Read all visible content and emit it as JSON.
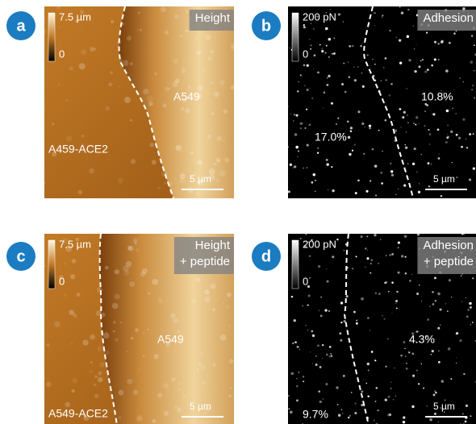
{
  "panels": [
    {
      "letter": "a",
      "scale_max": "7.5 µm",
      "scale_min": "0",
      "mode": [
        "Height"
      ],
      "labels": [
        "A459-ACE2",
        "A549"
      ],
      "scale_bar": "5 µm"
    },
    {
      "letter": "b",
      "scale_max": "200 pN",
      "scale_min": "0",
      "mode": [
        "Adhesion"
      ],
      "labels": [
        "10.8%",
        "17.0%"
      ],
      "scale_bar": "5 µm"
    },
    {
      "letter": "c",
      "scale_max": "7.5 µm",
      "scale_min": "0",
      "mode": [
        "Height",
        "+ peptide"
      ],
      "labels": [
        "A549",
        "A549-ACE2"
      ],
      "scale_bar": "5 µm"
    },
    {
      "letter": "d",
      "scale_max": "200 pN",
      "scale_min": "0",
      "mode": [
        "Adhesion",
        "+ peptide"
      ],
      "labels": [
        "4.3%",
        "9.7%"
      ],
      "scale_bar": "5 µm"
    }
  ]
}
